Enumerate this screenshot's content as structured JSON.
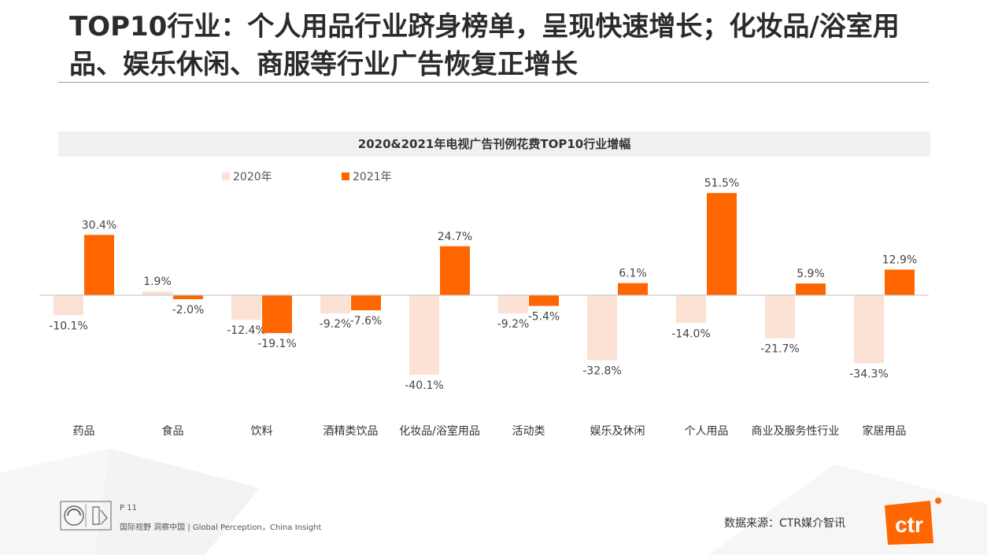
{
  "page": {
    "title": "TOP10行业：个人用品行业跻身榜单，呈现快速增长；化妆品/浴室用品、娱乐休闲、商服等行业广告恢复正增长",
    "page_number": "P 11",
    "slogan": "国际视野 洞察中国 | Global Perception，China Insight",
    "source": "数据来源：CTR媒介智讯",
    "brand_logo_text": "ctr"
  },
  "chart_data": {
    "type": "bar",
    "title": "2020&2021年电视广告刊例花费TOP10行业增幅",
    "categories": [
      "药品",
      "食品",
      "饮料",
      "酒精类饮品",
      "化妆品/浴室用品",
      "活动类",
      "娱乐及休闲",
      "个人用品",
      "商业及服务性行业",
      "家居用品"
    ],
    "series": [
      {
        "name": "2020年",
        "color": "#fbe2d4",
        "values": [
          -10.1,
          1.9,
          -12.4,
          -9.2,
          -40.1,
          -9.2,
          -32.8,
          -14.0,
          -21.7,
          -34.3
        ],
        "labels": [
          "-10.1%",
          "1.9%",
          "-12.4%",
          "-9.2%",
          "-40.1%",
          "-9.2%",
          "-32.8%",
          "-14.0%",
          "-21.7%",
          "-34.3%"
        ]
      },
      {
        "name": "2021年",
        "color": "#ff6600",
        "values": [
          30.4,
          -2.0,
          -19.1,
          -7.6,
          24.7,
          -5.4,
          6.1,
          51.5,
          5.9,
          12.9
        ],
        "labels": [
          "30.4%",
          "-2.0%",
          "-19.1%",
          "-7.6%",
          "24.7%",
          "-5.4%",
          "6.1%",
          "51.5%",
          "5.9%",
          "12.9%"
        ]
      }
    ],
    "ylim": [
      -45,
      55
    ],
    "grid": false,
    "legend_position": "top-left"
  }
}
